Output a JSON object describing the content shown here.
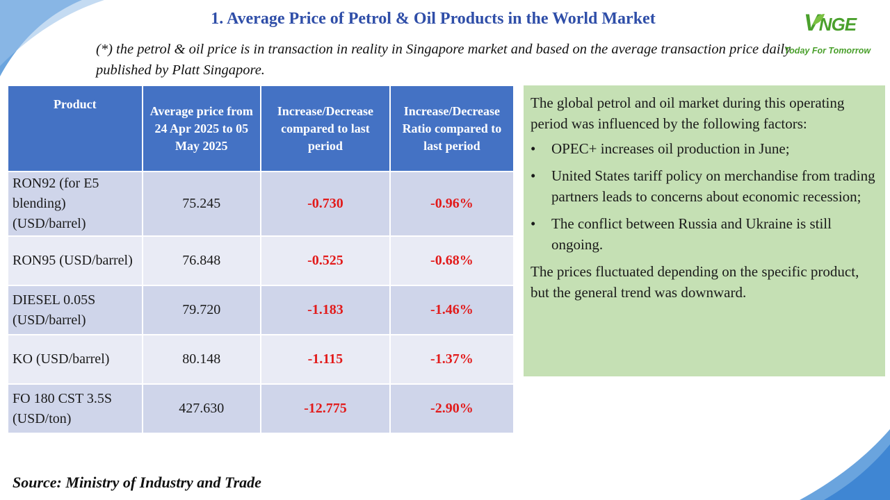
{
  "header": {
    "title": "1. Average Price of Petrol & Oil Products in the World Market",
    "note": "(*) the petrol & oil price is in transaction in reality in Singapore market and based on the average transaction price daily published by Platt Singapore."
  },
  "logo": {
    "mark_first": "V",
    "mark_rest": "NGE",
    "tagline": "Today For Tomorrow"
  },
  "table": {
    "headers": {
      "product": "Product",
      "avg_price": "Average price from 24 Apr 2025 to 05 May 2025",
      "change": "Increase/Decrease compared to last period",
      "ratio": "Increase/Decrease Ratio compared to last period"
    },
    "rows": [
      {
        "product": "RON92 (for E5 blending) (USD/barrel)",
        "avg_price": "75.245",
        "change": "-0.730",
        "ratio": "-0.96%"
      },
      {
        "product": "RON95 (USD/barrel)",
        "avg_price": "76.848",
        "change": "-0.525",
        "ratio": "-0.68%"
      },
      {
        "product": "DIESEL 0.05S (USD/barrel)",
        "avg_price": "79.720",
        "change": "-1.183",
        "ratio": "-1.46%"
      },
      {
        "product": "KO (USD/barrel)",
        "avg_price": "80.148",
        "change": "-1.115",
        "ratio": "-1.37%"
      },
      {
        "product": "FO 180 CST 3.5S (USD/ton)",
        "avg_price": "427.630",
        "change": "-12.775",
        "ratio": "-2.90%"
      }
    ]
  },
  "factors": {
    "intro": "The global petrol and oil market during this operating period was influenced by the following factors:",
    "bullets": [
      "OPEC+ increases oil production in June;",
      "United States tariff policy on merchandise from trading partners leads to concerns about economic recession;",
      "The conflict between Russia and Ukraine is still ongoing."
    ],
    "closing": "The prices fluctuated depending on the specific product, but the general trend was downward."
  },
  "source": "Source: Ministry of Industry and Trade",
  "colors": {
    "title": "#2f4ea8",
    "header_bg": "#4472c4",
    "row_odd": "#cfd5ea",
    "row_even": "#e9ebf5",
    "negative": "#e21b1b",
    "factors_bg": "#c5e0b4",
    "brand_green": "#4aa02c"
  }
}
